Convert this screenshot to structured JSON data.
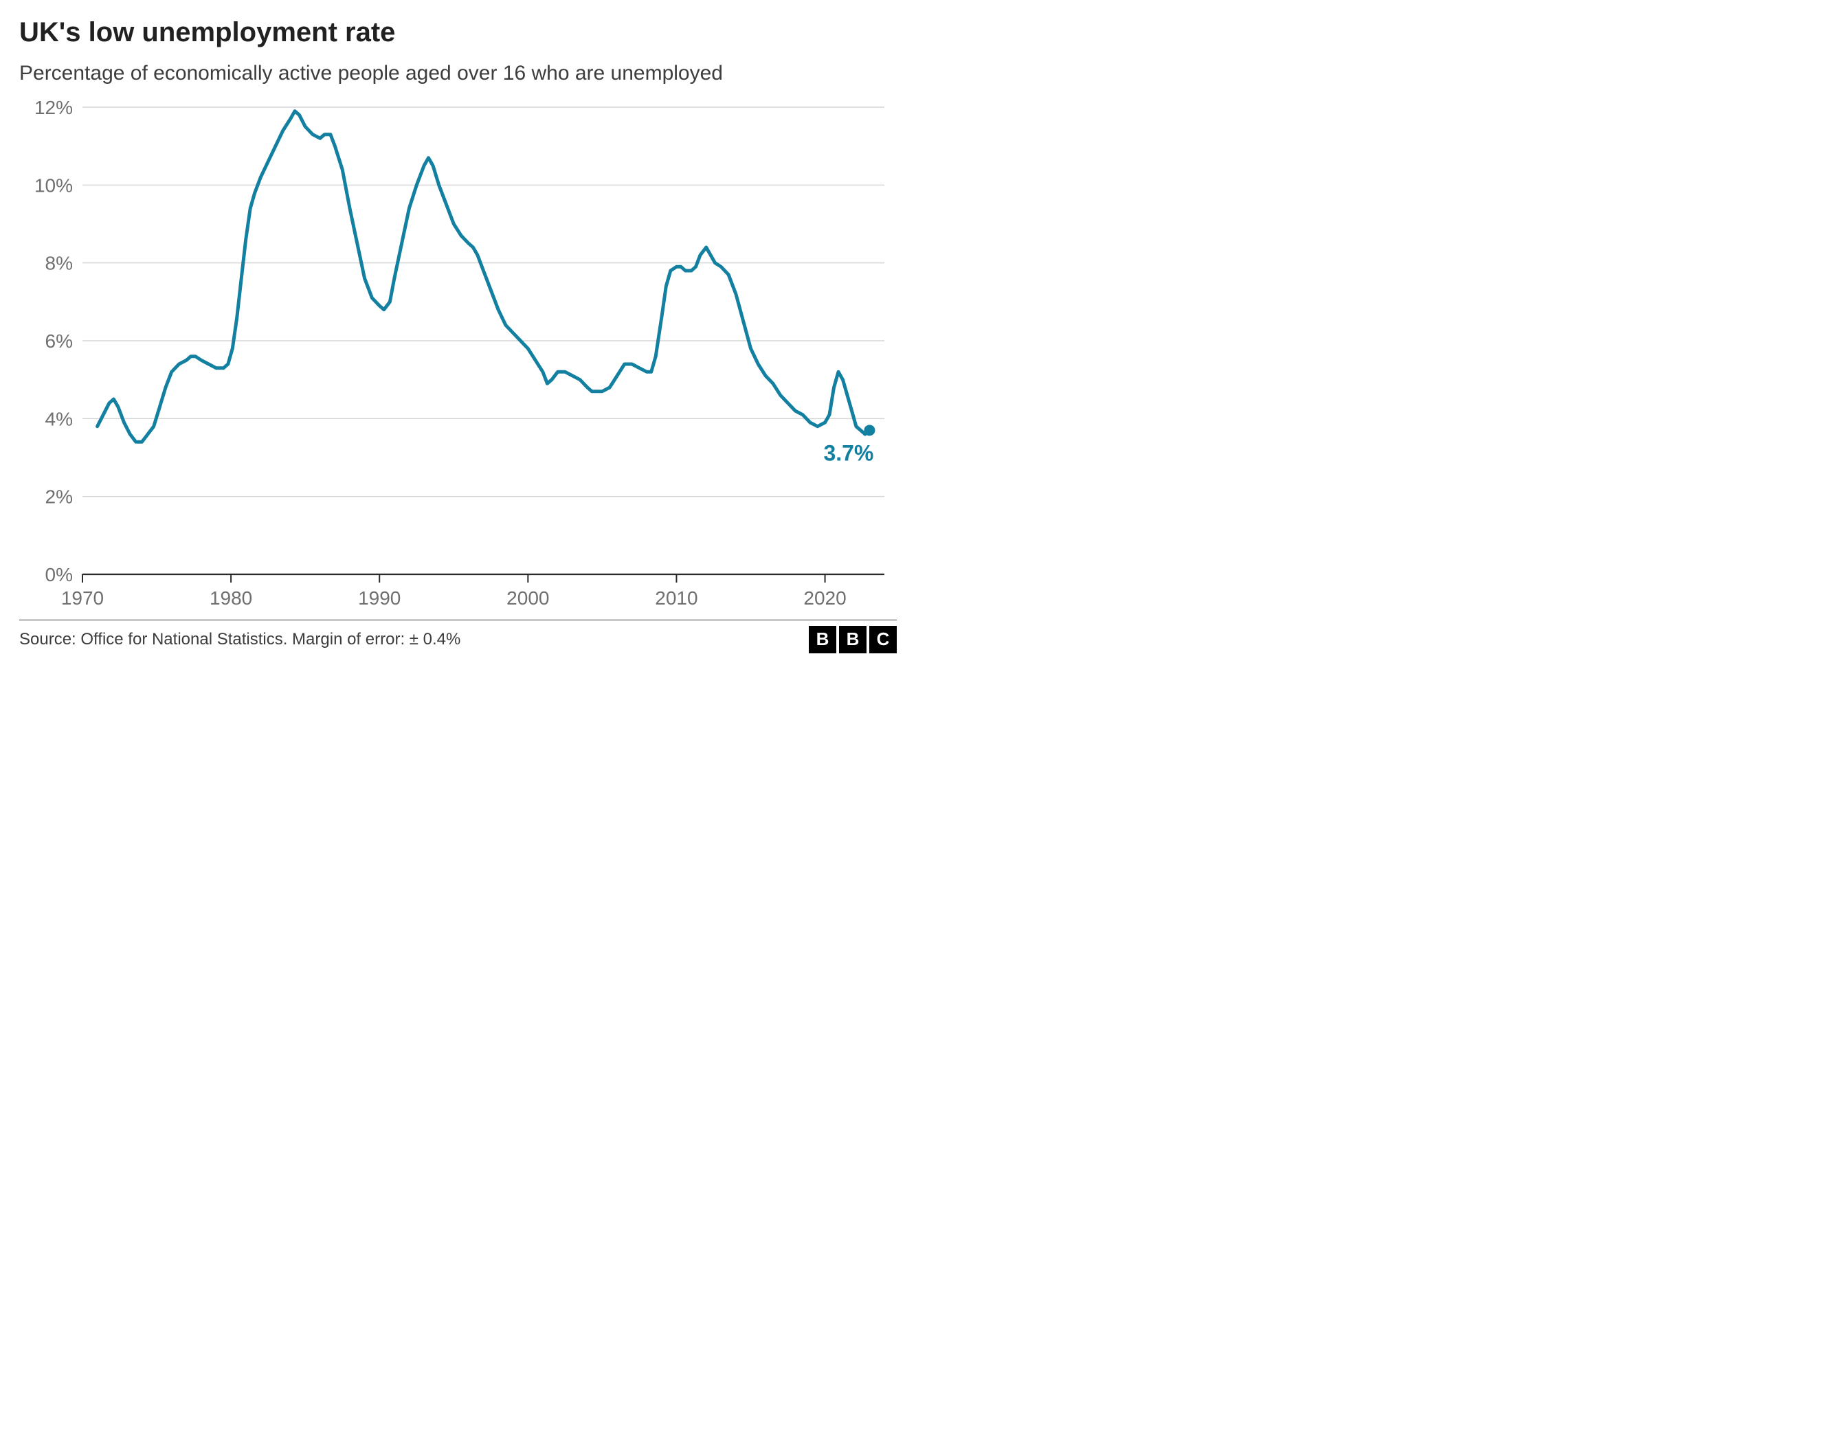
{
  "title": "UK's low unemployment rate",
  "subtitle": "Percentage of economically active people aged over 16 who are unemployed",
  "source": "Source: Office for National Statistics. Margin of error: ± 0.4%",
  "logo_letters": [
    "B",
    "B",
    "C"
  ],
  "chart": {
    "type": "line",
    "line_color": "#1380a1",
    "line_width": 5,
    "grid_color": "#d6d6d6",
    "axis_line_color": "#2a2a2a",
    "text_color": "#707070",
    "background_color": "#ffffff",
    "axis_fontsize": 28,
    "end_label": "3.7%",
    "end_label_fontsize": 32,
    "end_marker_radius": 8,
    "x": {
      "min": 1970,
      "max": 2024,
      "ticks": [
        1970,
        1980,
        1990,
        2000,
        2010,
        2020
      ]
    },
    "y": {
      "min": 0,
      "max": 12,
      "ticks": [
        0,
        2,
        4,
        6,
        8,
        10,
        12
      ],
      "tick_labels": [
        "0%",
        "2%",
        "4%",
        "6%",
        "8%",
        "10%",
        "12%"
      ]
    },
    "series": [
      {
        "x": 1971.0,
        "y": 3.8
      },
      {
        "x": 1971.4,
        "y": 4.1
      },
      {
        "x": 1971.8,
        "y": 4.4
      },
      {
        "x": 1972.1,
        "y": 4.5
      },
      {
        "x": 1972.4,
        "y": 4.3
      },
      {
        "x": 1972.8,
        "y": 3.9
      },
      {
        "x": 1973.2,
        "y": 3.6
      },
      {
        "x": 1973.6,
        "y": 3.4
      },
      {
        "x": 1974.0,
        "y": 3.4
      },
      {
        "x": 1974.4,
        "y": 3.6
      },
      {
        "x": 1974.8,
        "y": 3.8
      },
      {
        "x": 1975.2,
        "y": 4.3
      },
      {
        "x": 1975.6,
        "y": 4.8
      },
      {
        "x": 1976.0,
        "y": 5.2
      },
      {
        "x": 1976.5,
        "y": 5.4
      },
      {
        "x": 1977.0,
        "y": 5.5
      },
      {
        "x": 1977.3,
        "y": 5.6
      },
      {
        "x": 1977.6,
        "y": 5.6
      },
      {
        "x": 1978.0,
        "y": 5.5
      },
      {
        "x": 1978.5,
        "y": 5.4
      },
      {
        "x": 1979.0,
        "y": 5.3
      },
      {
        "x": 1979.5,
        "y": 5.3
      },
      {
        "x": 1979.8,
        "y": 5.4
      },
      {
        "x": 1980.1,
        "y": 5.8
      },
      {
        "x": 1980.4,
        "y": 6.6
      },
      {
        "x": 1980.7,
        "y": 7.6
      },
      {
        "x": 1981.0,
        "y": 8.6
      },
      {
        "x": 1981.3,
        "y": 9.4
      },
      {
        "x": 1981.6,
        "y": 9.8
      },
      {
        "x": 1982.0,
        "y": 10.2
      },
      {
        "x": 1982.5,
        "y": 10.6
      },
      {
        "x": 1983.0,
        "y": 11.0
      },
      {
        "x": 1983.5,
        "y": 11.4
      },
      {
        "x": 1984.0,
        "y": 11.7
      },
      {
        "x": 1984.3,
        "y": 11.9
      },
      {
        "x": 1984.6,
        "y": 11.8
      },
      {
        "x": 1985.0,
        "y": 11.5
      },
      {
        "x": 1985.5,
        "y": 11.3
      },
      {
        "x": 1986.0,
        "y": 11.2
      },
      {
        "x": 1986.3,
        "y": 11.3
      },
      {
        "x": 1986.7,
        "y": 11.3
      },
      {
        "x": 1987.0,
        "y": 11.0
      },
      {
        "x": 1987.5,
        "y": 10.4
      },
      {
        "x": 1988.0,
        "y": 9.4
      },
      {
        "x": 1988.5,
        "y": 8.5
      },
      {
        "x": 1989.0,
        "y": 7.6
      },
      {
        "x": 1989.5,
        "y": 7.1
      },
      {
        "x": 1990.0,
        "y": 6.9
      },
      {
        "x": 1990.3,
        "y": 6.8
      },
      {
        "x": 1990.7,
        "y": 7.0
      },
      {
        "x": 1991.0,
        "y": 7.6
      },
      {
        "x": 1991.5,
        "y": 8.5
      },
      {
        "x": 1992.0,
        "y": 9.4
      },
      {
        "x": 1992.5,
        "y": 10.0
      },
      {
        "x": 1993.0,
        "y": 10.5
      },
      {
        "x": 1993.3,
        "y": 10.7
      },
      {
        "x": 1993.6,
        "y": 10.5
      },
      {
        "x": 1994.0,
        "y": 10.0
      },
      {
        "x": 1994.5,
        "y": 9.5
      },
      {
        "x": 1995.0,
        "y": 9.0
      },
      {
        "x": 1995.5,
        "y": 8.7
      },
      {
        "x": 1996.0,
        "y": 8.5
      },
      {
        "x": 1996.3,
        "y": 8.4
      },
      {
        "x": 1996.6,
        "y": 8.2
      },
      {
        "x": 1997.0,
        "y": 7.8
      },
      {
        "x": 1997.5,
        "y": 7.3
      },
      {
        "x": 1998.0,
        "y": 6.8
      },
      {
        "x": 1998.5,
        "y": 6.4
      },
      {
        "x": 1999.0,
        "y": 6.2
      },
      {
        "x": 1999.5,
        "y": 6.0
      },
      {
        "x": 2000.0,
        "y": 5.8
      },
      {
        "x": 2000.5,
        "y": 5.5
      },
      {
        "x": 2001.0,
        "y": 5.2
      },
      {
        "x": 2001.3,
        "y": 4.9
      },
      {
        "x": 2001.6,
        "y": 5.0
      },
      {
        "x": 2002.0,
        "y": 5.2
      },
      {
        "x": 2002.5,
        "y": 5.2
      },
      {
        "x": 2003.0,
        "y": 5.1
      },
      {
        "x": 2003.5,
        "y": 5.0
      },
      {
        "x": 2004.0,
        "y": 4.8
      },
      {
        "x": 2004.3,
        "y": 4.7
      },
      {
        "x": 2004.6,
        "y": 4.7
      },
      {
        "x": 2005.0,
        "y": 4.7
      },
      {
        "x": 2005.5,
        "y": 4.8
      },
      {
        "x": 2006.0,
        "y": 5.1
      },
      {
        "x": 2006.5,
        "y": 5.4
      },
      {
        "x": 2007.0,
        "y": 5.4
      },
      {
        "x": 2007.5,
        "y": 5.3
      },
      {
        "x": 2008.0,
        "y": 5.2
      },
      {
        "x": 2008.3,
        "y": 5.2
      },
      {
        "x": 2008.6,
        "y": 5.6
      },
      {
        "x": 2009.0,
        "y": 6.6
      },
      {
        "x": 2009.3,
        "y": 7.4
      },
      {
        "x": 2009.6,
        "y": 7.8
      },
      {
        "x": 2010.0,
        "y": 7.9
      },
      {
        "x": 2010.3,
        "y": 7.9
      },
      {
        "x": 2010.6,
        "y": 7.8
      },
      {
        "x": 2011.0,
        "y": 7.8
      },
      {
        "x": 2011.3,
        "y": 7.9
      },
      {
        "x": 2011.6,
        "y": 8.2
      },
      {
        "x": 2012.0,
        "y": 8.4
      },
      {
        "x": 2012.3,
        "y": 8.2
      },
      {
        "x": 2012.6,
        "y": 8.0
      },
      {
        "x": 2013.0,
        "y": 7.9
      },
      {
        "x": 2013.5,
        "y": 7.7
      },
      {
        "x": 2014.0,
        "y": 7.2
      },
      {
        "x": 2014.5,
        "y": 6.5
      },
      {
        "x": 2015.0,
        "y": 5.8
      },
      {
        "x": 2015.5,
        "y": 5.4
      },
      {
        "x": 2016.0,
        "y": 5.1
      },
      {
        "x": 2016.5,
        "y": 4.9
      },
      {
        "x": 2017.0,
        "y": 4.6
      },
      {
        "x": 2017.5,
        "y": 4.4
      },
      {
        "x": 2018.0,
        "y": 4.2
      },
      {
        "x": 2018.5,
        "y": 4.1
      },
      {
        "x": 2019.0,
        "y": 3.9
      },
      {
        "x": 2019.5,
        "y": 3.8
      },
      {
        "x": 2020.0,
        "y": 3.9
      },
      {
        "x": 2020.3,
        "y": 4.1
      },
      {
        "x": 2020.6,
        "y": 4.8
      },
      {
        "x": 2020.9,
        "y": 5.2
      },
      {
        "x": 2021.2,
        "y": 5.0
      },
      {
        "x": 2021.5,
        "y": 4.6
      },
      {
        "x": 2021.8,
        "y": 4.2
      },
      {
        "x": 2022.1,
        "y": 3.8
      },
      {
        "x": 2022.4,
        "y": 3.7
      },
      {
        "x": 2022.7,
        "y": 3.6
      },
      {
        "x": 2023.0,
        "y": 3.7
      }
    ]
  }
}
